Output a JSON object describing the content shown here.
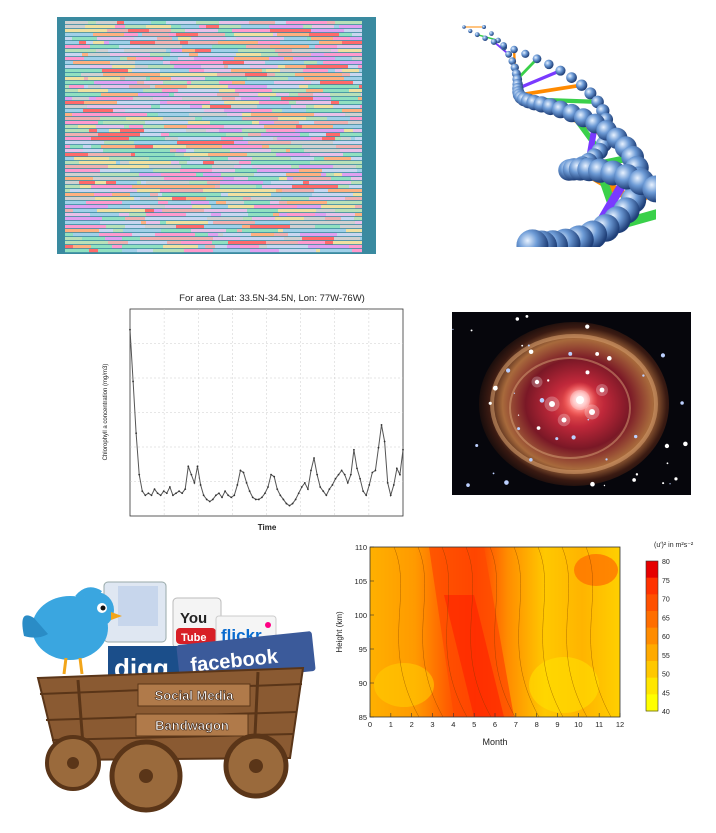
{
  "panels": {
    "sequence_grid": {
      "icon": "sequence-alignment-grid"
    },
    "dna": {
      "icon": "dna-double-helix"
    },
    "timeseries": {
      "title": "For area (Lat: 33.5N-34.5N, Lon: 77W-76W)",
      "ylabel": "Chlorophyll a concentration (mg/m3)",
      "xlabel": "Time"
    },
    "nebula": {
      "icon": "star-nebula-photo"
    },
    "social": {
      "sign_line1": "Social Media",
      "sign_line2": "Bandwagon",
      "logo_you": "You",
      "logo_tube": "Tube",
      "logo_flickr": "flickr",
      "logo_digg": "digg",
      "logo_facebook": "facebook",
      "icon": "social-media-wagon"
    },
    "heatmap": {
      "xlabel": "Month",
      "ylabel": "Height (km)",
      "colorbar_title": "(u')² in m²s⁻²"
    }
  },
  "chart_data": [
    {
      "type": "line",
      "title": "For area (Lat: 33.5N-34.5N, Lon: 77W-76W)",
      "xlabel": "Time",
      "ylabel": "Chlorophyll a concentration (mg/m3)",
      "x": [
        0,
        1,
        2,
        3,
        4,
        5,
        6,
        7,
        8,
        9,
        10,
        11,
        12,
        13,
        14,
        15,
        16,
        17,
        18,
        19,
        20,
        21,
        22,
        23,
        24,
        25,
        26,
        27,
        28,
        29,
        30,
        31,
        32,
        33,
        34,
        35,
        36,
        37,
        38,
        39,
        40,
        41,
        42,
        43,
        44,
        45,
        46,
        47,
        48,
        49,
        50,
        51,
        52,
        53,
        54,
        55,
        56,
        57,
        58,
        59,
        60,
        61,
        62,
        63,
        64,
        65,
        66,
        67,
        68,
        69,
        70,
        71,
        72,
        73,
        74,
        75,
        76,
        77,
        78,
        79,
        80,
        81,
        82,
        83,
        84,
        85,
        86,
        87,
        88,
        89
      ],
      "y": [
        9.0,
        6.5,
        4.0,
        2.0,
        1.2,
        1.0,
        1.1,
        1.0,
        1.3,
        1.1,
        1.0,
        1.2,
        1.1,
        1.4,
        1.0,
        1.1,
        1.2,
        1.1,
        1.3,
        2.4,
        2.0,
        1.6,
        2.4,
        1.5,
        1.0,
        0.8,
        0.7,
        0.8,
        1.0,
        1.1,
        0.9,
        1.2,
        1.0,
        0.9,
        1.0,
        1.5,
        2.2,
        2.1,
        1.6,
        1.2,
        0.9,
        0.8,
        0.8,
        0.9,
        1.1,
        1.4,
        2.0,
        1.9,
        1.3,
        1.0,
        0.8,
        0.6,
        0.5,
        0.6,
        0.8,
        1.1,
        1.4,
        1.6,
        1.3,
        2.2,
        2.8,
        2.0,
        1.4,
        1.2,
        1.0,
        1.3,
        1.5,
        1.8,
        2.0,
        2.2,
        2.0,
        1.6,
        2.0,
        3.2,
        2.3,
        1.8,
        1.2,
        1.0,
        1.5,
        2.1,
        2.2,
        3.3,
        4.4,
        3.6,
        1.6,
        1.0,
        1.5,
        2.3,
        2.0,
        3.2
      ],
      "ylim": [
        0,
        10
      ],
      "grid": true
    },
    {
      "type": "heatmap",
      "xlabel": "Month",
      "ylabel": "Height (km)",
      "x_ticks": [
        0,
        1,
        2,
        3,
        4,
        5,
        6,
        7,
        8,
        9,
        10,
        11,
        12
      ],
      "y_ticks": [
        85,
        90,
        95,
        100,
        105,
        110
      ],
      "xlim": [
        0,
        12
      ],
      "ylim": [
        85,
        110
      ],
      "colorbar": {
        "title": "(u')² in m²s⁻²",
        "ticks": [
          40,
          45,
          50,
          55,
          60,
          65,
          70,
          75,
          80
        ],
        "colors": [
          "#ffff00",
          "#ffe600",
          "#ffc800",
          "#ffaa00",
          "#ff8c00",
          "#ff6e00",
          "#ff5000",
          "#ff3200",
          "#e60000"
        ]
      }
    }
  ]
}
